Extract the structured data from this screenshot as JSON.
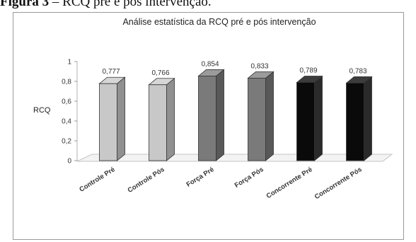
{
  "caption": {
    "label": "Figura 3",
    "text": " – RCQ pré e pós intervenção."
  },
  "chart_data": {
    "type": "bar",
    "title": "Análise estatística da RCQ pré e pós intervenção",
    "xlabel": "",
    "ylabel": "RCQ",
    "categories": [
      "Controle Pré",
      "Controle Pós",
      "Força Pré",
      "Força Pós",
      "Concorrente Pré",
      "Concorrente Pós"
    ],
    "values": [
      0.777,
      0.766,
      0.854,
      0.833,
      0.789,
      0.783
    ],
    "data_labels": [
      "0,777",
      "0,766",
      "0,854",
      "0,833",
      "0,789",
      "0,783"
    ],
    "ylim": [
      0,
      1
    ],
    "yticks": [
      0,
      0.2,
      0.4,
      0.6,
      0.8,
      1
    ],
    "ytick_labels": [
      "0",
      "0,2",
      "0,4",
      "0,6",
      "0,8",
      "1"
    ],
    "bar_colors": [
      "#c8c8c8",
      "#c8c8c8",
      "#7a7a7a",
      "#7a7a7a",
      "#0a0a0a",
      "#0a0a0a"
    ],
    "grid": false,
    "style": "3d-column"
  }
}
